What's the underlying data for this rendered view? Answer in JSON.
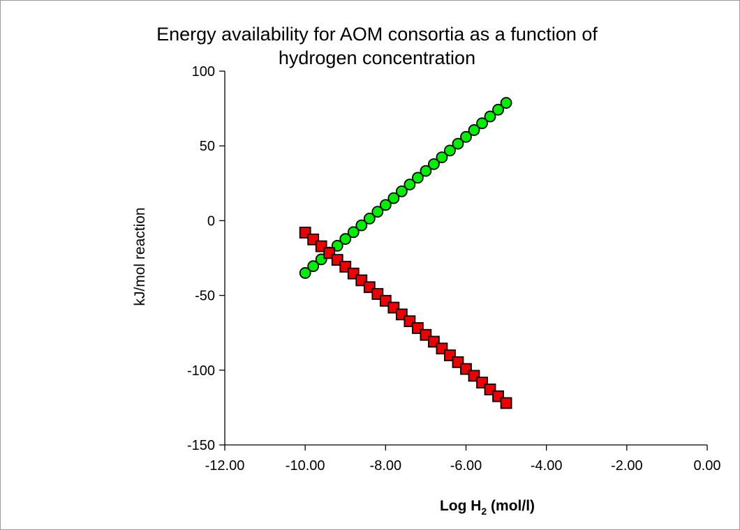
{
  "chart_data": {
    "type": "scatter",
    "title_lines": [
      "Energy availability for AOM consortia as a function of",
      "hydrogen concentration"
    ],
    "xlabel_main": "Log H",
    "xlabel_sub": "2",
    "xlabel_tail": " (mol/l)",
    "ylabel": "kJ/mol reaction",
    "xlim": [
      -12,
      0
    ],
    "ylim": [
      -150,
      100
    ],
    "x_ticks": [
      -12,
      -10,
      -8,
      -6,
      -4,
      -2,
      0
    ],
    "x_tick_labels": [
      "-12.00",
      "-10.00",
      "-8.00",
      "-6.00",
      "-4.00",
      "-2.00",
      "0.00"
    ],
    "y_ticks": [
      100,
      50,
      0,
      -50,
      -100,
      -150
    ],
    "y_tick_labels": [
      "100",
      "50",
      "0",
      "-50",
      "-100",
      "-150"
    ],
    "grid": false,
    "legend": "none",
    "series": [
      {
        "marker": "circle",
        "color": "#00ee00",
        "x_start": -10.0,
        "x_step": 0.2,
        "count": 26,
        "y_start": -35.0,
        "y_step": 4.55
      },
      {
        "marker": "square",
        "color": "#ee0000",
        "x_start": -10.0,
        "x_step": 0.2,
        "count": 26,
        "y_start": -8.0,
        "y_step": -4.56
      }
    ]
  }
}
